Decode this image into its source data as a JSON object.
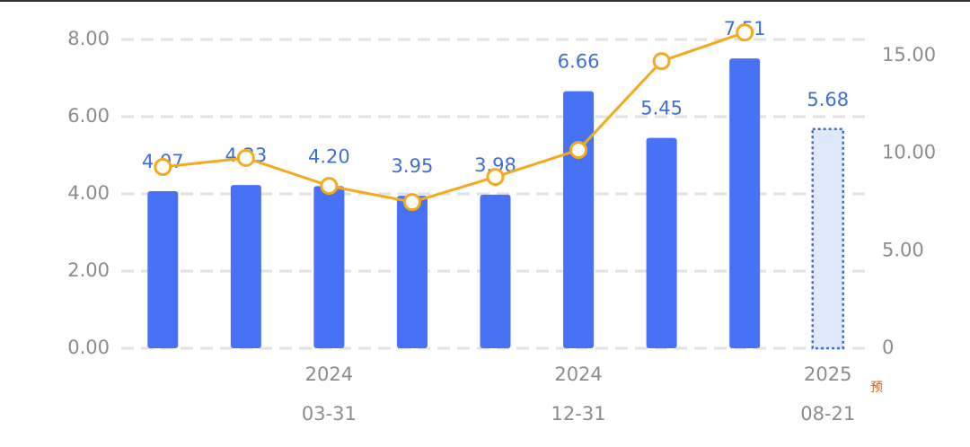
{
  "chart_data": {
    "type": "bar-line",
    "categories": [
      null,
      null,
      [
        "2024",
        "03-31"
      ],
      null,
      null,
      [
        "2024",
        "12-31"
      ],
      null,
      null,
      [
        "2025",
        "08-21"
      ]
    ],
    "forecast_marker": "预",
    "series": [
      {
        "type": "bar",
        "color": "#4772f5",
        "forecast_color": "#dfe9fb",
        "forecast_border": "#3d6fd1",
        "forecast_index": 8,
        "values": [
          4.07,
          4.23,
          4.2,
          3.95,
          3.98,
          6.66,
          5.45,
          7.51,
          5.68
        ],
        "value_labels": [
          "4.07",
          "4.23",
          "4.20",
          "3.95",
          "3.98",
          "6.66",
          "5.45",
          "7.51",
          "5.68"
        ],
        "label_color": "#3d6fd6"
      },
      {
        "type": "line",
        "axis": "y2",
        "color": "#f5a91c",
        "values": [
          9.29,
          9.75,
          8.32,
          7.49,
          8.78,
          10.16,
          14.71,
          16.18,
          null
        ]
      }
    ],
    "ylim": [
      0,
      8
    ],
    "yticks": [
      {
        "value": 0,
        "label": "0.00"
      },
      {
        "value": 2,
        "label": "2.00"
      },
      {
        "value": 4,
        "label": "4.00"
      },
      {
        "value": 6,
        "label": "6.00"
      },
      {
        "value": 8,
        "label": "8.00"
      }
    ],
    "y2lim": [
      0,
      15.82
    ],
    "y2ticks": [
      0,
      {
        "value": 5,
        "label": "5.00"
      },
      {
        "value": 10,
        "label": "10.00"
      },
      {
        "value": 15,
        "label": "15.00"
      }
    ],
    "grid": true
  }
}
